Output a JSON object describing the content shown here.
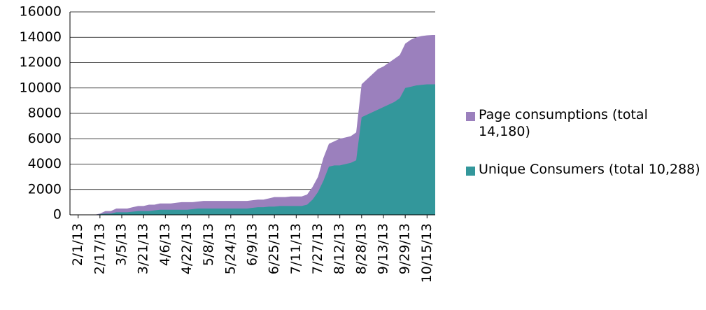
{
  "chart_data": {
    "type": "area",
    "categories": [
      null,
      "2/1/13",
      null,
      null,
      null,
      "2/17/13",
      null,
      null,
      null,
      "3/5/13",
      null,
      null,
      null,
      "3/21/13",
      null,
      null,
      null,
      "4/6/13",
      null,
      null,
      null,
      "4/22/13",
      null,
      null,
      null,
      "5/8/13",
      null,
      null,
      null,
      "5/24/13",
      null,
      null,
      null,
      "6/9/13",
      null,
      null,
      null,
      "6/25/13",
      null,
      null,
      null,
      "7/11/13",
      null,
      null,
      null,
      "7/27/13",
      null,
      null,
      null,
      "8/12/13",
      null,
      null,
      null,
      "8/28/13",
      null,
      null,
      null,
      "9/13/13",
      null,
      null,
      null,
      "9/29/13",
      null,
      null,
      null,
      "10/15/13",
      null
    ],
    "series": [
      {
        "name": "Page consumptions (total 14,180)",
        "color": "#9b80bd",
        "values": [
          0,
          0,
          0,
          0,
          0,
          100,
          300,
          300,
          500,
          500,
          500,
          600,
          700,
          700,
          800,
          800,
          900,
          900,
          900,
          950,
          1000,
          1000,
          1000,
          1050,
          1100,
          1100,
          1100,
          1100,
          1100,
          1100,
          1100,
          1100,
          1100,
          1150,
          1200,
          1200,
          1300,
          1400,
          1400,
          1400,
          1450,
          1450,
          1450,
          1600,
          2200,
          3000,
          4500,
          5600,
          5800,
          6000,
          6100,
          6200,
          6500,
          10300,
          10700,
          11100,
          11500,
          11700,
          12000,
          12300,
          12600,
          13500,
          13800,
          14000,
          14100,
          14150,
          14180
        ]
      },
      {
        "name": "Unique Consumers (total 10,288)",
        "color": "#33979b",
        "values": [
          0,
          0,
          0,
          0,
          0,
          50,
          100,
          100,
          200,
          200,
          200,
          250,
          300,
          300,
          300,
          350,
          400,
          400,
          400,
          400,
          400,
          400,
          450,
          500,
          500,
          500,
          500,
          500,
          500,
          500,
          500,
          500,
          500,
          550,
          600,
          600,
          650,
          650,
          700,
          700,
          700,
          700,
          700,
          800,
          1200,
          1800,
          2700,
          3800,
          3900,
          3900,
          4000,
          4100,
          4300,
          7700,
          7900,
          8100,
          8300,
          8500,
          8700,
          8900,
          9200,
          10000,
          10100,
          10200,
          10250,
          10288,
          10288
        ]
      }
    ],
    "ylim": [
      0,
      16000
    ],
    "yticks": [
      0,
      2000,
      4000,
      6000,
      8000,
      10000,
      12000,
      14000,
      16000
    ],
    "grid": true,
    "legend": "right"
  }
}
